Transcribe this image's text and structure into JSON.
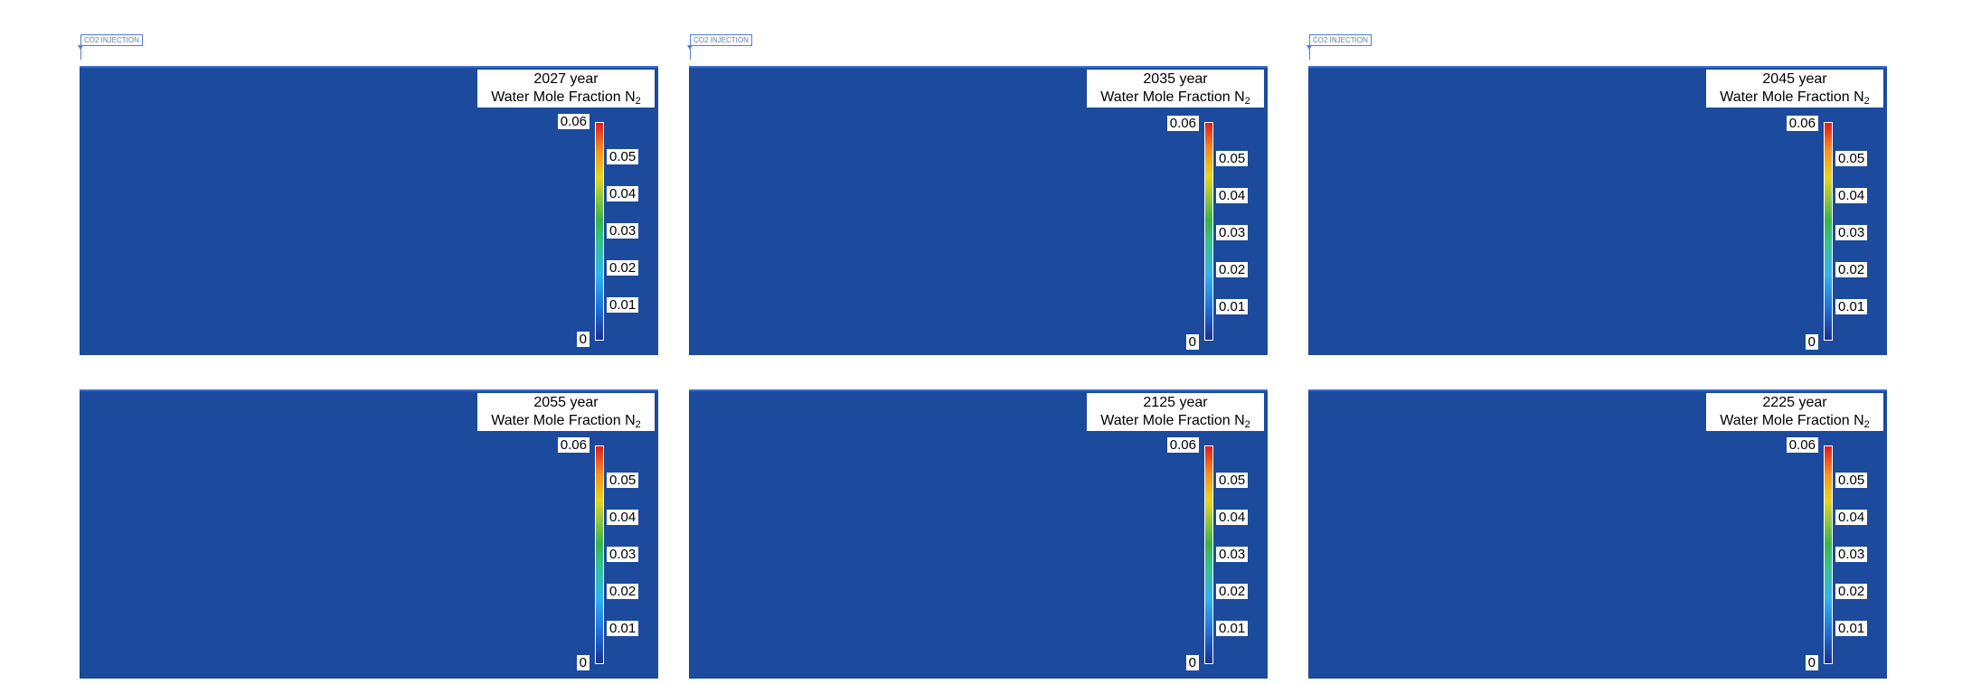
{
  "well_label": "CO2 INJECTION",
  "variable": "Water Mole Fraction N",
  "variable_subscript": "2",
  "colorbar": {
    "min": 0,
    "max": 0.06,
    "top_label": "0.06",
    "bottom_label": "0",
    "ticks": [
      "0.05",
      "0.04",
      "0.03",
      "0.02",
      "0.01"
    ],
    "colors": [
      "#1a2f8f",
      "#1e73d9",
      "#35b2ee",
      "#36c28f",
      "#39b34a",
      "#8cc63f",
      "#e7d51f",
      "#f7931e",
      "#e41a1c"
    ]
  },
  "field_color": "#1c4a9d",
  "panels": [
    {
      "year": "2027 year"
    },
    {
      "year": "2035 year"
    },
    {
      "year": "2045 year"
    },
    {
      "year": "2055 year"
    },
    {
      "year": "2125 year"
    },
    {
      "year": "2225 year"
    }
  ]
}
